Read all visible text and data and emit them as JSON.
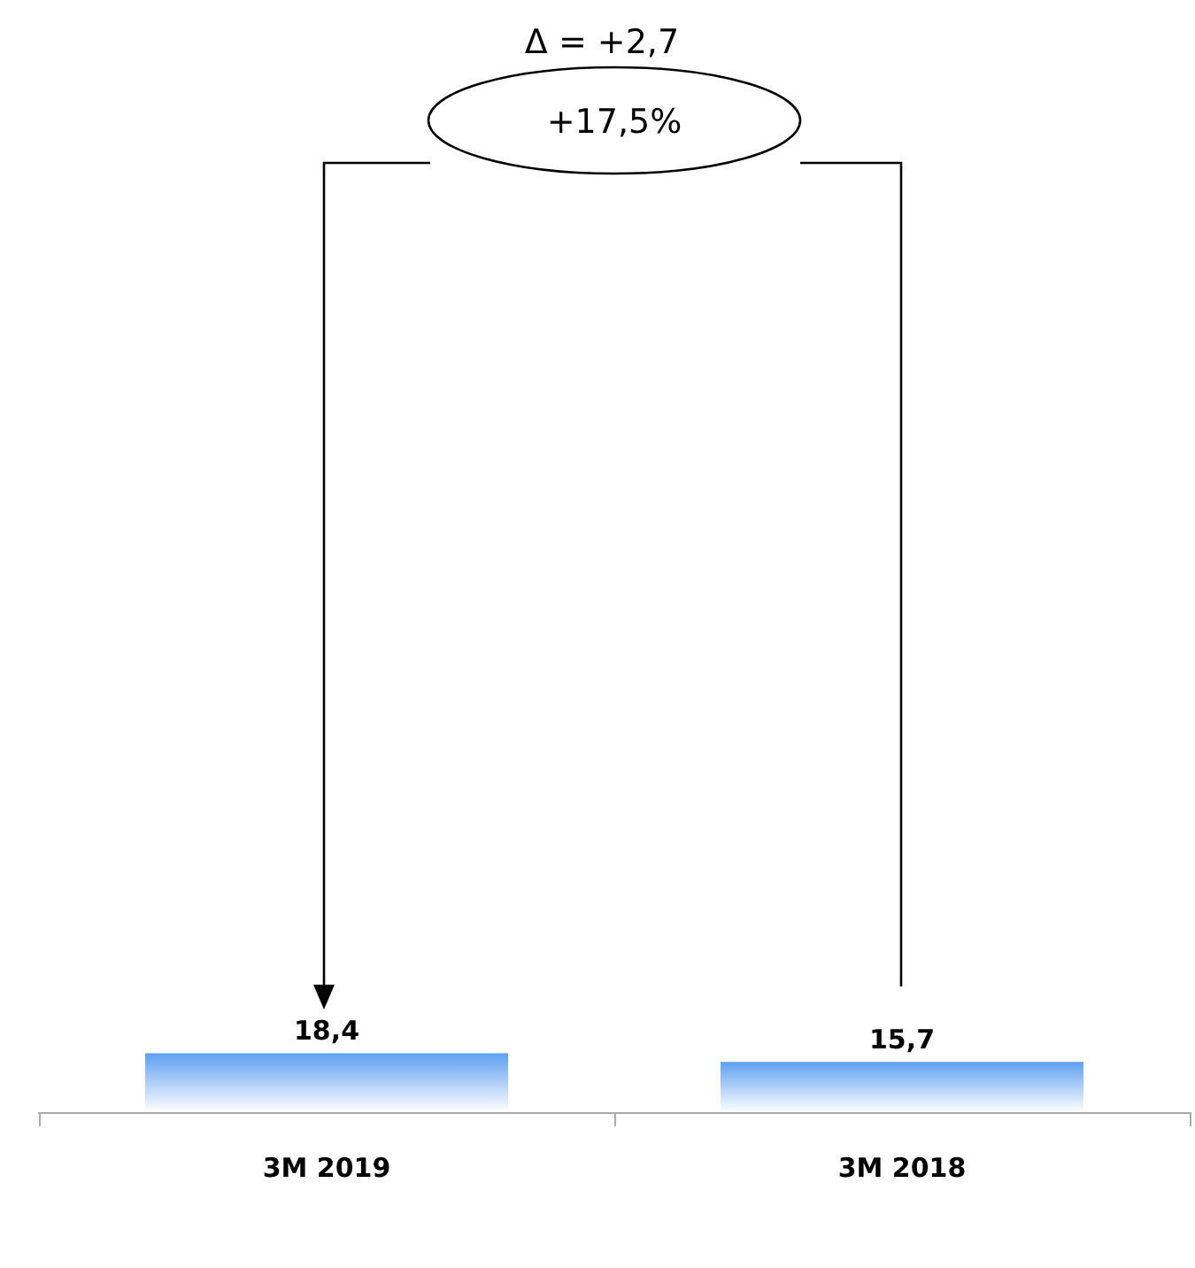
{
  "chart_data": {
    "type": "bar",
    "categories": [
      "3M 2019",
      "3M 2018"
    ],
    "values": [
      18.4,
      15.7
    ],
    "value_labels": [
      "18,4",
      "15,7"
    ],
    "color": "#5ea0f0",
    "annotations": [
      "Δ = +2,7",
      "+17,5%"
    ]
  }
}
